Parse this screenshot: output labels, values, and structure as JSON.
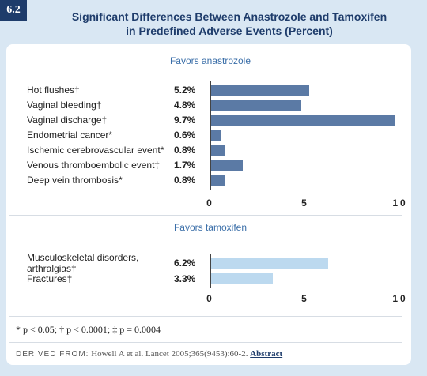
{
  "badge": "6.2",
  "title": "Significant Differences Between Anastrozole and Tamoxifen in Predefined Adverse Events (Percent)",
  "chart_data": [
    {
      "type": "bar",
      "orientation": "horizontal",
      "title": "Favors anastrozole",
      "categories": [
        "Hot flushes†",
        "Vaginal bleeding†",
        "Vaginal discharge†",
        "Endometrial cancer*",
        "Ischemic cerebrovascular event*",
        "Venous thromboembolic event‡",
        "Deep vein thrombosis*"
      ],
      "values": [
        5.2,
        4.8,
        9.7,
        0.6,
        0.8,
        1.7,
        0.8
      ],
      "value_labels": [
        "5.2%",
        "4.8%",
        "9.7%",
        "0.6%",
        "0.8%",
        "1.7%",
        "0.8%"
      ],
      "color": "#5b7aa5",
      "xlim": [
        0,
        10
      ],
      "xticks": [
        0,
        5,
        10
      ]
    },
    {
      "type": "bar",
      "orientation": "horizontal",
      "title": "Favors tamoxifen",
      "categories": [
        "Musculoskeletal disorders, arthralgias†",
        "Fractures†"
      ],
      "values": [
        6.2,
        3.3
      ],
      "value_labels": [
        "6.2%",
        "3.3%"
      ],
      "color": "#bcd9ef",
      "xlim": [
        0,
        10
      ],
      "xticks": [
        0,
        5,
        10
      ]
    }
  ],
  "footnote": "* p < 0.05; † p < 0.0001; ‡ p = 0.0004",
  "source": {
    "label": "DERIVED FROM:",
    "text": "Howell A et al. Lancet 2005;365(9453):60-2.",
    "link": "Abstract"
  }
}
